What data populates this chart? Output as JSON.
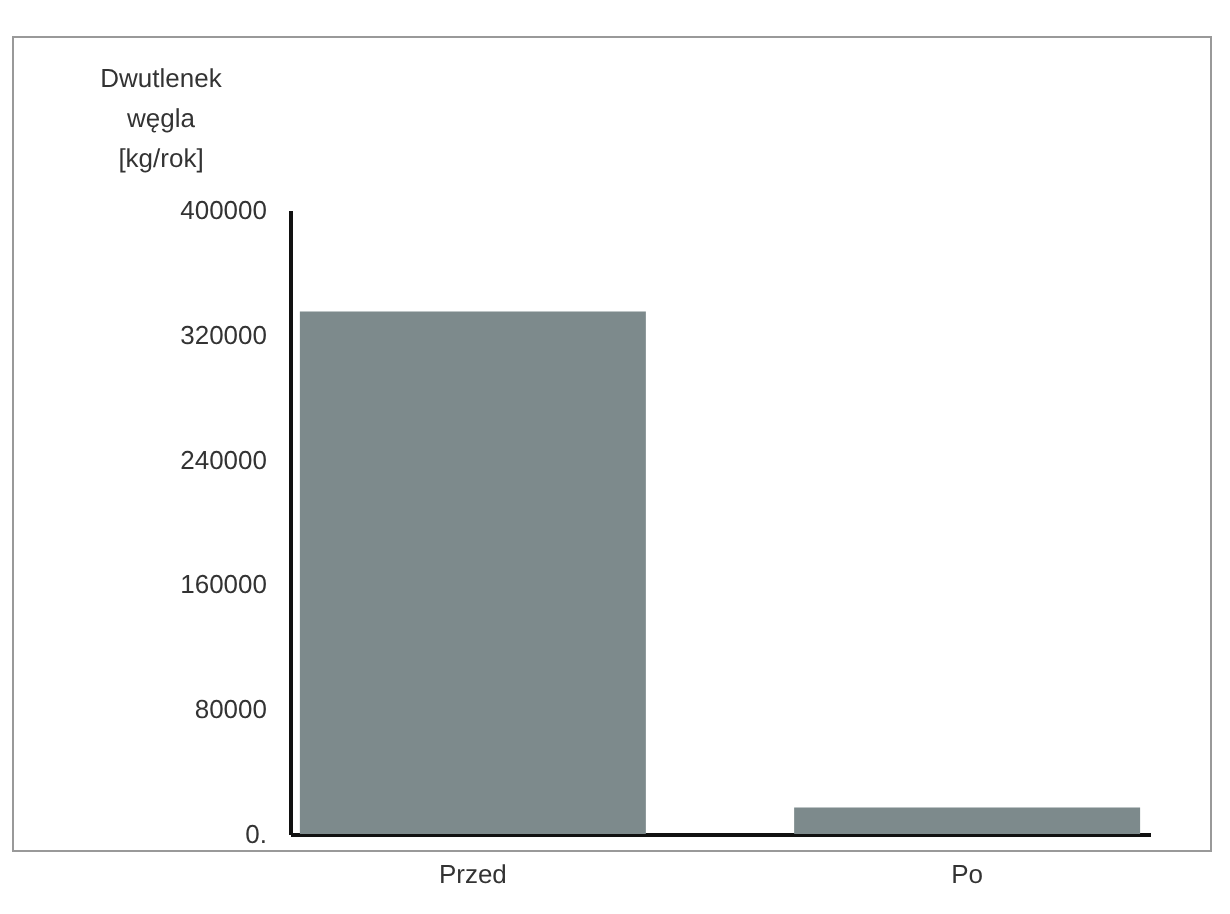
{
  "chart_data": {
    "type": "bar",
    "ylabel": "Dwutlenek węgla [kg/rok]",
    "categories": [
      "Przed",
      "Po"
    ],
    "values": [
      335000,
      17000
    ],
    "color": "#7d8a8c",
    "ylim": [
      0,
      400000
    ],
    "yticks": [
      {
        "value": 0,
        "label": "0."
      },
      80000,
      160000,
      240000,
      320000,
      400000
    ],
    "grid": false
  }
}
